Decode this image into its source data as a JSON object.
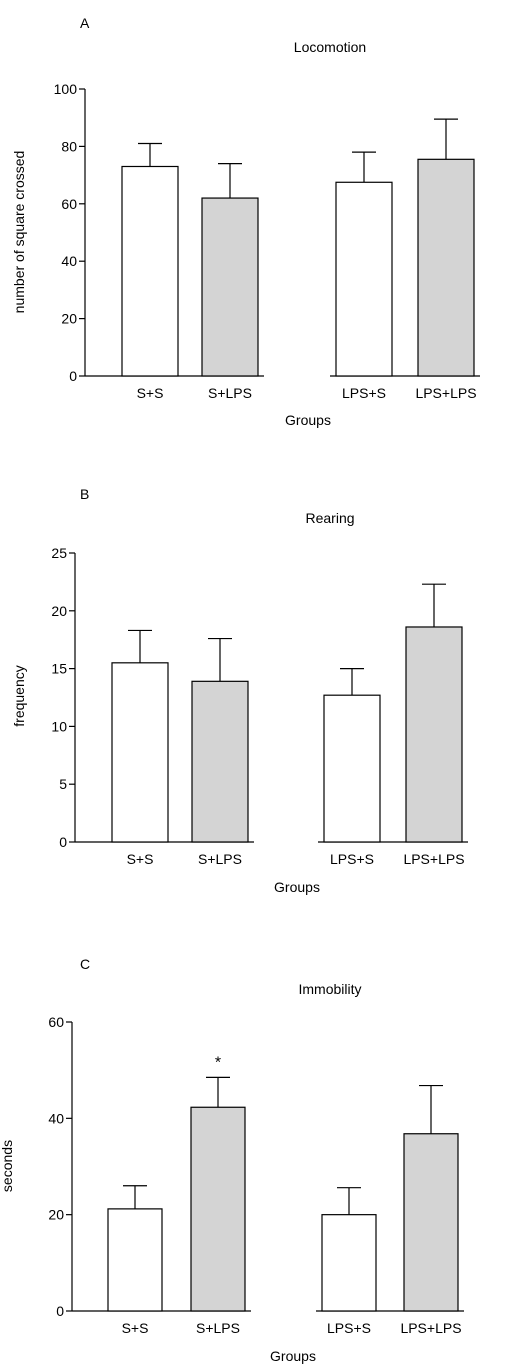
{
  "chart_data": [
    {
      "type": "bar",
      "panel": "A",
      "title": "Locomotion",
      "xlabel": "Groups",
      "ylabel": "number of square crossed",
      "ylim": [
        0,
        100
      ],
      "yticks": [
        0,
        20,
        40,
        60,
        80,
        100
      ],
      "categories": [
        "S+S",
        "S+LPS",
        "LPS+S",
        "LPS+LPS"
      ],
      "values": [
        73,
        62,
        67.5,
        75.5
      ],
      "errors": [
        8,
        12,
        10.5,
        14
      ],
      "bar_colors": [
        "#ffffff",
        "#d4d4d4",
        "#ffffff",
        "#d4d4d4"
      ],
      "annotations": [
        "",
        "",
        "",
        ""
      ]
    },
    {
      "type": "bar",
      "panel": "B",
      "title": "Rearing",
      "xlabel": "Groups",
      "ylabel": "frequency",
      "ylim": [
        0,
        25
      ],
      "yticks": [
        0,
        5,
        10,
        15,
        20,
        25
      ],
      "categories": [
        "S+S",
        "S+LPS",
        "LPS+S",
        "LPS+LPS"
      ],
      "values": [
        15.5,
        13.9,
        12.7,
        18.6
      ],
      "errors": [
        2.8,
        3.7,
        2.3,
        3.7
      ],
      "bar_colors": [
        "#ffffff",
        "#d4d4d4",
        "#ffffff",
        "#d4d4d4"
      ],
      "annotations": [
        "",
        "",
        "",
        ""
      ]
    },
    {
      "type": "bar",
      "panel": "C",
      "title": "Immobility",
      "xlabel": "Groups",
      "ylabel": "seconds",
      "ylim": [
        0,
        60
      ],
      "yticks": [
        0,
        20,
        40,
        60
      ],
      "categories": [
        "S+S",
        "S+LPS",
        "LPS+S",
        "LPS+LPS"
      ],
      "values": [
        21.2,
        42.3,
        20,
        36.8
      ],
      "errors": [
        4.8,
        6.2,
        5.6,
        10
      ],
      "bar_colors": [
        "#ffffff",
        "#d4d4d4",
        "#ffffff",
        "#d4d4d4"
      ],
      "annotations": [
        "",
        "*",
        "",
        ""
      ]
    }
  ]
}
